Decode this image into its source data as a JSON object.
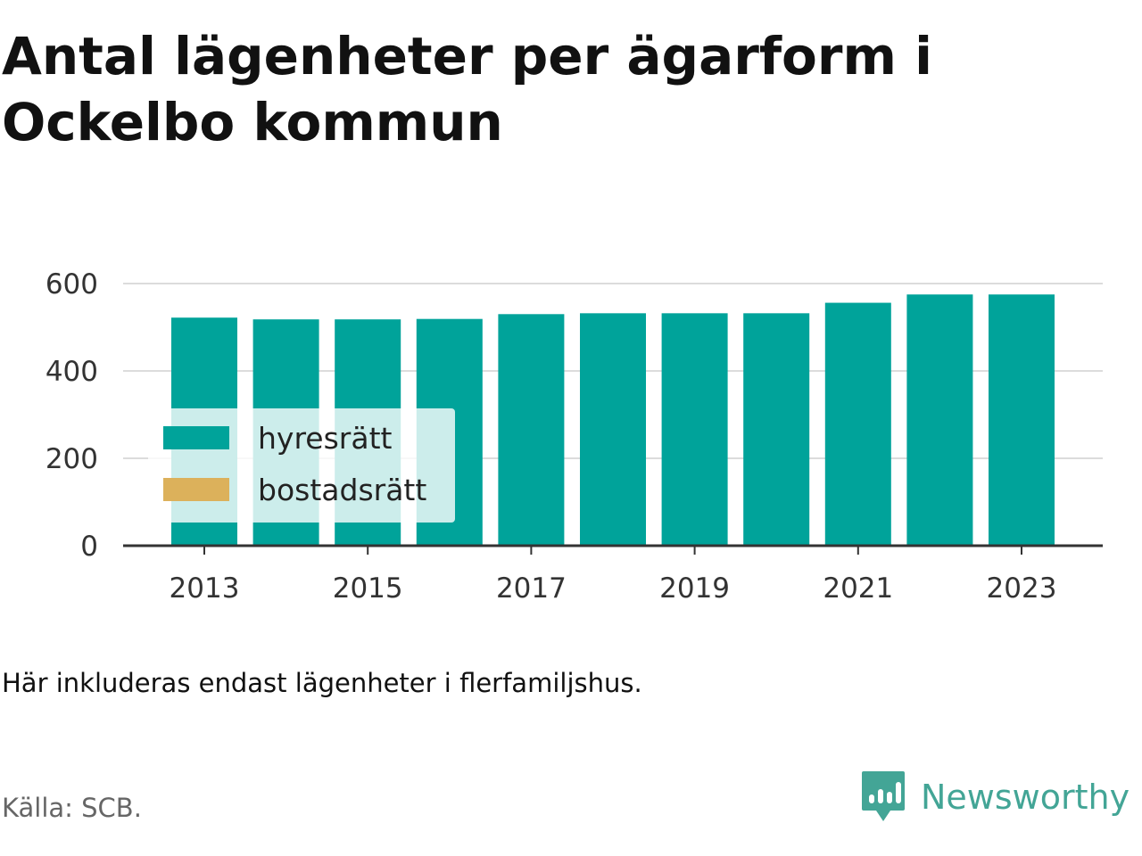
{
  "title": "Antal lägenheter per ägarform i Ockelbo kommun",
  "note": "Här inkluderas endast lägenheter i flerfamiljshus.",
  "source": "Källa: SCB.",
  "brand": {
    "name": "Newsworthy",
    "icon": "newsworthy-logo-icon",
    "color": "#43a596"
  },
  "chart_data": {
    "type": "bar",
    "stacked": true,
    "categories": [
      "2013",
      "2014",
      "2015",
      "2016",
      "2017",
      "2018",
      "2019",
      "2020",
      "2021",
      "2022",
      "2023"
    ],
    "series": [
      {
        "name": "hyresrätt",
        "color": "#00a39a",
        "values": [
          522,
          518,
          518,
          519,
          530,
          532,
          532,
          532,
          556,
          575,
          575
        ]
      },
      {
        "name": "bostadsrätt",
        "color": "#dcb15b",
        "values": [
          0,
          0,
          0,
          0,
          0,
          0,
          0,
          0,
          0,
          0,
          0
        ]
      }
    ],
    "ylim": [
      0,
      600
    ],
    "yticks": [
      "0",
      "200",
      "400",
      "600"
    ],
    "xticks": [
      "2013",
      "2015",
      "2017",
      "2019",
      "2021",
      "2023"
    ],
    "grid": true,
    "legend_position": "bottom-left"
  }
}
